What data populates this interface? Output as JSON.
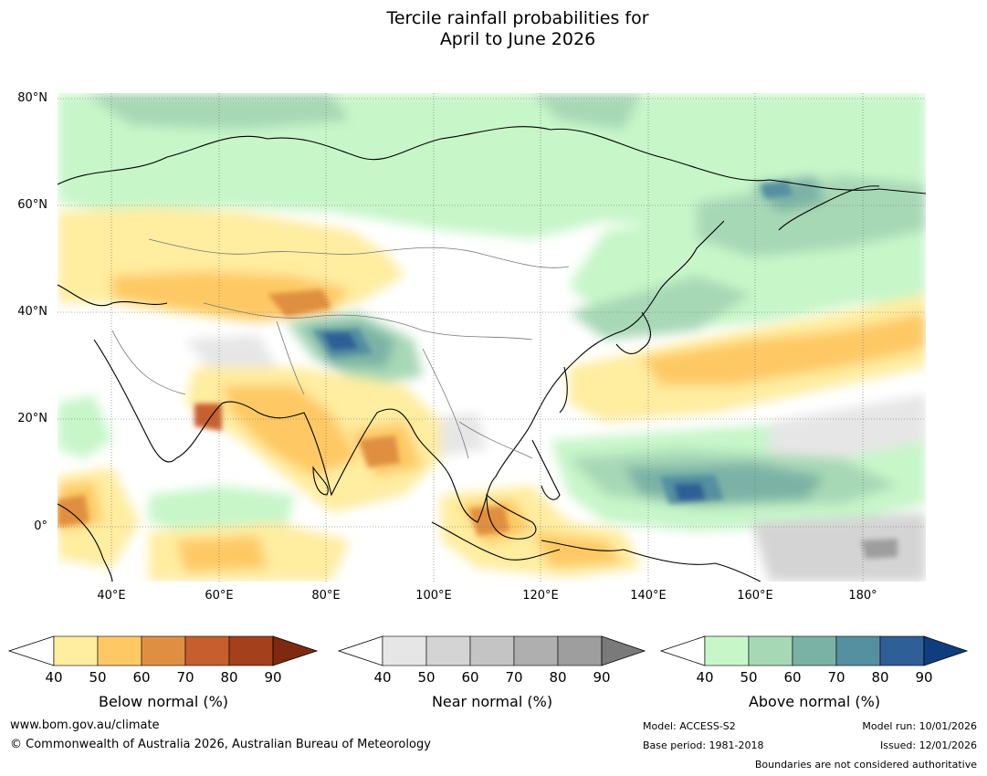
{
  "title": {
    "line1": "Tercile rainfall probabilities for",
    "line2": "April to June 2026"
  },
  "axes": {
    "lat_labels": [
      "80°N",
      "60°N",
      "40°N",
      "20°N",
      "0°"
    ],
    "lon_labels": [
      "40°E",
      "60°E",
      "80°E",
      "100°E",
      "120°E",
      "140°E",
      "160°E",
      "180°"
    ]
  },
  "colorbars": {
    "below": {
      "label": "Below normal (%)",
      "ticks": [
        "40",
        "50",
        "60",
        "70",
        "80",
        "90"
      ],
      "colors": [
        "#ffeda0",
        "#fec965",
        "#e08f41",
        "#c75e2d",
        "#a5401d"
      ],
      "extend_color": "#7f2a10"
    },
    "near": {
      "label": "Near normal (%)",
      "ticks": [
        "40",
        "50",
        "60",
        "70",
        "80",
        "90"
      ],
      "colors": [
        "#e6e6e6",
        "#d4d4d4",
        "#c4c4c4",
        "#afafaf",
        "#9e9e9e"
      ],
      "extend_color": "#7a7a7a"
    },
    "above": {
      "label": "Above normal (%)",
      "ticks": [
        "40",
        "50",
        "60",
        "70",
        "80",
        "90"
      ],
      "colors": [
        "#c7f6c9",
        "#a7d8b6",
        "#7bb2a6",
        "#5590a0",
        "#2e5f97"
      ],
      "extend_color": "#0f3d80"
    }
  },
  "footer": {
    "url": "www.bom.gov.au/climate",
    "copyright": "© Commonwealth of Australia 2026, Australian Bureau of Meteorology",
    "model": "Model: ACCESS-S2",
    "base_period": "Base period: 1981-2018",
    "model_run": "Model run: 10/01/2026",
    "issued": "Issued: 12/01/2026",
    "disclaimer": "Boundaries are not considered authoritative"
  }
}
